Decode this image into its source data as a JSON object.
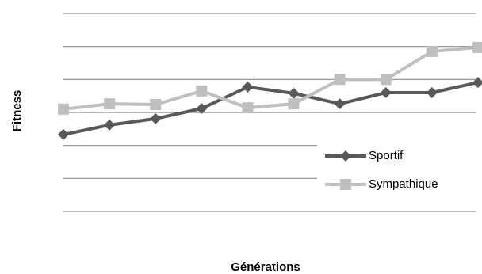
{
  "chart_data": {
    "type": "line",
    "xlabel": "Générations",
    "ylabel": "Fitness",
    "categories": [
      null,
      null,
      null,
      null,
      null,
      null,
      null,
      null,
      null,
      null
    ],
    "series": [
      {
        "name": "Sportif",
        "color": "#595959",
        "marker": "diamond",
        "values": [
          2.33,
          2.62,
          2.81,
          3.12,
          3.77,
          3.58,
          3.26,
          3.6,
          3.6,
          3.91
        ]
      },
      {
        "name": "Sympathique",
        "color": "#bfbfbf",
        "marker": "square",
        "values": [
          3.1,
          3.26,
          3.24,
          3.65,
          3.14,
          3.26,
          4.0,
          4.0,
          4.85,
          4.97
        ]
      }
    ],
    "ylim": [
      0,
      6
    ],
    "yticks": [
      0,
      1,
      2,
      3,
      4,
      5,
      6
    ],
    "grid": true,
    "legend": "lower right"
  }
}
